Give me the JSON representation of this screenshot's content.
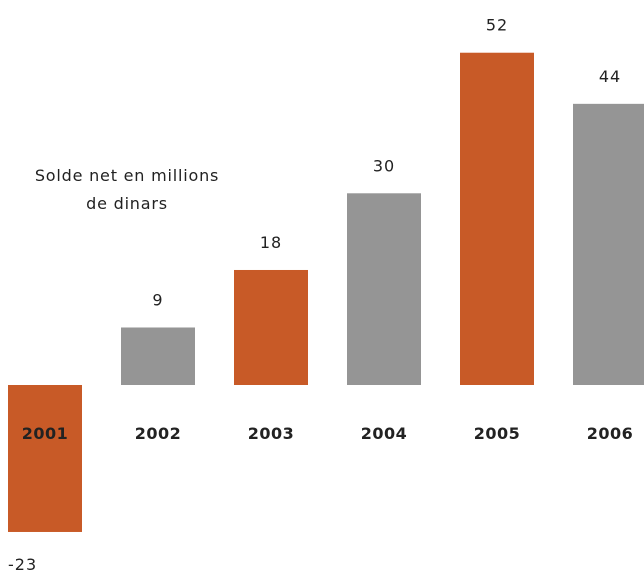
{
  "chart_data": {
    "type": "bar",
    "categories": [
      "2001",
      "2002",
      "2003",
      "2004",
      "2005",
      "2006"
    ],
    "values": [
      -23,
      9,
      18,
      30,
      52,
      44
    ],
    "value_labels": [
      "-23",
      "9",
      "18",
      "30",
      "52",
      "44"
    ],
    "annotation": [
      "Solde net en millions",
      "de dinars"
    ],
    "title": "",
    "xlabel": "",
    "ylabel": "",
    "ylim": [
      -23,
      52
    ],
    "grid": false,
    "legend": "none",
    "colors": [
      "#C85A27",
      "#959595",
      "#C85A27",
      "#959595",
      "#C85A27",
      "#959595"
    ]
  }
}
